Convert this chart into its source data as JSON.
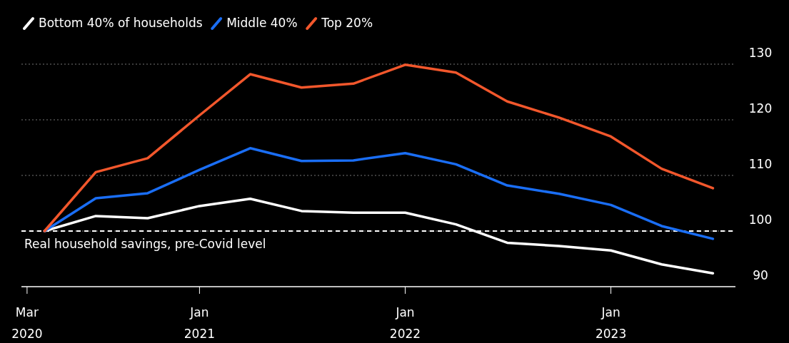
{
  "chart_data": {
    "type": "line",
    "x": [
      "2020-04",
      "2020-07",
      "2020-10",
      "2021-01",
      "2021-04",
      "2021-07",
      "2021-10",
      "2022-01",
      "2022-04",
      "2022-07",
      "2022-10",
      "2023-01",
      "2023-04",
      "2023-07"
    ],
    "series": [
      {
        "name": "Bottom 40% of households",
        "color": "#ffffff",
        "values": [
          100,
          102.7,
          102.3,
          104.5,
          105.8,
          103.6,
          103.3,
          103.3,
          101.2,
          97.9,
          97.3,
          96.5,
          94,
          92.4
        ]
      },
      {
        "name": "Middle 40%",
        "color": "#1a6ef5",
        "values": [
          100,
          105.9,
          106.8,
          111,
          114.9,
          112.6,
          112.7,
          114,
          112,
          108.2,
          106.7,
          104.7,
          100.9,
          98.6
        ]
      },
      {
        "name": "Top 20%",
        "color": "#f2572c",
        "values": [
          100,
          110.6,
          113.1,
          120.8,
          128.2,
          125.8,
          126.5,
          129.9,
          128.5,
          123.3,
          120.4,
          117,
          111.2,
          107.7
        ]
      }
    ],
    "xlim": [
      "2020-02-20",
      "2023-08-10"
    ],
    "xticks": [
      {
        "value": "2020-03",
        "label": "Mar\n2020"
      },
      {
        "value": "2021-01",
        "label": "Jan\n2021"
      },
      {
        "value": "2022-01",
        "label": "Jan\n2022"
      },
      {
        "value": "2023-01",
        "label": "Jan\n2023"
      }
    ],
    "ylim": [
      90,
      130
    ],
    "yticks": [
      90,
      100,
      110,
      120,
      130
    ],
    "grid": "y",
    "legend": "top left",
    "marker": "none",
    "line_style": "solid",
    "ref_lines": [
      {
        "axis": "y",
        "value": 100,
        "label": "Real household savings, pre-Covid level",
        "color": "#ffffff",
        "line_style": "dashed"
      }
    ]
  }
}
